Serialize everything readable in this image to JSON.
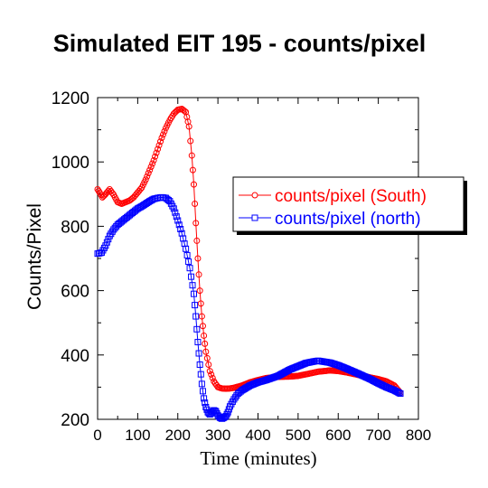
{
  "chart_data": {
    "type": "line",
    "title": "Simulated EIT 195 - counts/pixel",
    "xlabel": "Time (minutes)",
    "ylabel": "Counts/Pixel",
    "xlim": [
      0,
      800
    ],
    "ylim": [
      200,
      1200
    ],
    "xticks": [
      0,
      100,
      200,
      300,
      400,
      500,
      600,
      700,
      800
    ],
    "yticks": [
      200,
      400,
      600,
      800,
      1000,
      1200
    ],
    "grid": false,
    "legend_position": "right-middle",
    "series": [
      {
        "name": "counts/pixel (South)",
        "color": "#ff0000",
        "marker": "circle",
        "x": [
          0,
          5,
          12,
          20,
          30,
          40,
          50,
          60,
          70,
          80,
          90,
          100,
          110,
          120,
          130,
          140,
          150,
          160,
          170,
          180,
          190,
          200,
          210,
          220,
          228,
          235,
          240,
          245,
          250,
          255,
          260,
          265,
          270,
          280,
          290,
          300,
          310,
          320,
          330,
          340,
          360,
          380,
          400,
          420,
          450,
          480,
          500,
          520,
          550,
          580,
          600,
          620,
          650,
          680,
          700,
          720,
          740,
          750,
          755
        ],
        "values": [
          915,
          905,
          890,
          900,
          915,
          898,
          875,
          870,
          875,
          880,
          890,
          905,
          920,
          945,
          975,
          1005,
          1040,
          1075,
          1105,
          1130,
          1150,
          1162,
          1165,
          1155,
          1110,
          1020,
          930,
          810,
          700,
          600,
          520,
          460,
          410,
          350,
          318,
          300,
          296,
          295,
          296,
          298,
          305,
          315,
          322,
          328,
          332,
          333,
          335,
          340,
          348,
          352,
          350,
          346,
          338,
          330,
          325,
          318,
          305,
          290,
          282
        ]
      },
      {
        "name": "counts/pixel (north)",
        "color": "#0000ff",
        "marker": "square",
        "x": [
          0,
          10,
          20,
          30,
          40,
          50,
          60,
          70,
          80,
          90,
          100,
          110,
          120,
          130,
          140,
          150,
          160,
          170,
          180,
          190,
          200,
          210,
          220,
          230,
          240,
          245,
          250,
          255,
          260,
          265,
          270,
          275,
          280,
          285,
          290,
          295,
          300,
          305,
          310,
          315,
          320,
          325,
          330,
          340,
          350,
          360,
          380,
          400,
          420,
          450,
          480,
          500,
          520,
          540,
          550,
          560,
          580,
          600,
          620,
          650,
          680,
          700,
          720,
          740,
          755
        ],
        "values": [
          715,
          718,
          740,
          770,
          790,
          805,
          815,
          825,
          835,
          845,
          855,
          862,
          870,
          878,
          885,
          888,
          890,
          888,
          878,
          855,
          818,
          778,
          730,
          670,
          590,
          520,
          440,
          370,
          310,
          265,
          238,
          222,
          215,
          222,
          228,
          225,
          212,
          205,
          202,
          205,
          210,
          222,
          240,
          262,
          280,
          290,
          305,
          315,
          322,
          335,
          355,
          365,
          375,
          380,
          382,
          380,
          376,
          368,
          358,
          342,
          325,
          312,
          300,
          290,
          280
        ]
      }
    ]
  }
}
